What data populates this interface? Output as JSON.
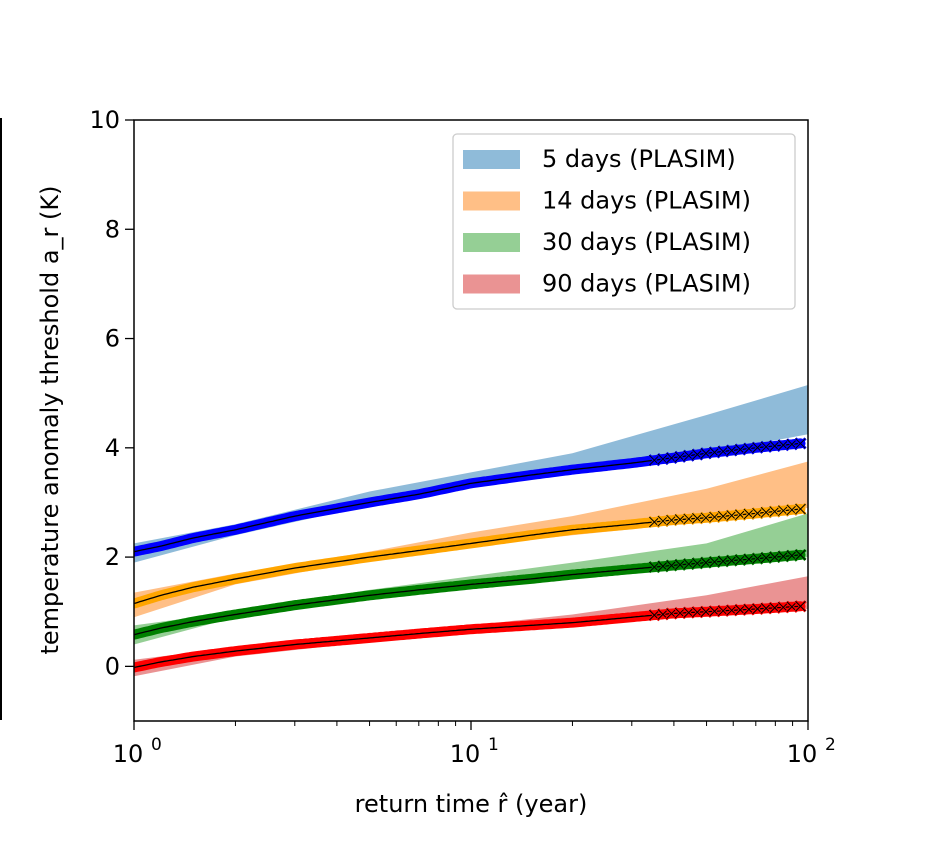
{
  "chart_data": {
    "type": "line",
    "title": "",
    "xlabel": "return time r̂ (year)",
    "ylabel": "temperature anomaly threshold a_r (K)",
    "xscale": "log",
    "xlim": [
      1,
      100
    ],
    "ylim": [
      -1,
      10
    ],
    "x_ticks": [
      {
        "value": 1,
        "base": "10",
        "exp": "0"
      },
      {
        "value": 10,
        "base": "10",
        "exp": "1"
      },
      {
        "value": 100,
        "base": "10",
        "exp": "2"
      }
    ],
    "y_ticks": [
      "0",
      "2",
      "4",
      "6",
      "8",
      "10"
    ],
    "grid": false,
    "legend_position": "top-right",
    "series": [
      {
        "name": "5 days (PLASIM)",
        "color": "#0000ff",
        "band_color": "#1f77b4",
        "x": [
          1,
          1.2,
          1.5,
          2,
          3,
          5,
          7,
          10,
          15,
          20,
          30,
          40,
          50,
          70,
          95
        ],
        "values": [
          2.1,
          2.2,
          2.35,
          2.5,
          2.75,
          3.0,
          3.15,
          3.35,
          3.5,
          3.6,
          3.72,
          3.82,
          3.9,
          4.0,
          4.08
        ],
        "band_x": [
          1,
          2,
          5,
          10,
          20,
          50,
          100
        ],
        "band_lower": [
          1.9,
          2.4,
          2.95,
          3.3,
          3.55,
          3.9,
          4.25
        ],
        "band_upper": [
          2.25,
          2.6,
          3.2,
          3.55,
          3.9,
          4.6,
          5.15
        ]
      },
      {
        "name": "14 days (PLASIM)",
        "color": "#ffa500",
        "band_color": "#ff7f0e",
        "x": [
          1,
          1.2,
          1.5,
          2,
          3,
          5,
          7,
          10,
          15,
          20,
          30,
          40,
          50,
          70,
          95
        ],
        "values": [
          1.15,
          1.3,
          1.45,
          1.6,
          1.8,
          2.0,
          2.12,
          2.25,
          2.4,
          2.5,
          2.6,
          2.68,
          2.72,
          2.8,
          2.88
        ],
        "band_x": [
          1,
          2,
          5,
          10,
          20,
          50,
          100
        ],
        "band_lower": [
          0.9,
          1.5,
          1.95,
          2.2,
          2.4,
          2.65,
          2.9
        ],
        "band_upper": [
          1.35,
          1.7,
          2.1,
          2.45,
          2.75,
          3.25,
          3.75
        ]
      },
      {
        "name": "30 days (PLASIM)",
        "color": "#008000",
        "band_color": "#2ca02c",
        "x": [
          1,
          1.2,
          1.5,
          2,
          3,
          5,
          7,
          10,
          15,
          20,
          30,
          40,
          50,
          70,
          95
        ],
        "values": [
          0.58,
          0.7,
          0.82,
          0.95,
          1.12,
          1.3,
          1.4,
          1.5,
          1.6,
          1.68,
          1.78,
          1.85,
          1.9,
          1.97,
          2.04
        ],
        "band_x": [
          1,
          2,
          5,
          10,
          20,
          50,
          100
        ],
        "band_lower": [
          0.4,
          0.9,
          1.25,
          1.45,
          1.6,
          1.8,
          2.0
        ],
        "band_upper": [
          0.75,
          1.0,
          1.4,
          1.65,
          1.9,
          2.25,
          2.8
        ]
      },
      {
        "name": "90 days (PLASIM)",
        "color": "#ff0000",
        "band_color": "#d62728",
        "x": [
          1,
          1.2,
          1.5,
          2,
          3,
          5,
          7,
          10,
          15,
          20,
          30,
          40,
          50,
          70,
          95
        ],
        "values": [
          -0.02,
          0.08,
          0.18,
          0.28,
          0.4,
          0.52,
          0.6,
          0.68,
          0.75,
          0.8,
          0.9,
          0.97,
          1.0,
          1.05,
          1.1
        ],
        "band_x": [
          1,
          2,
          5,
          10,
          20,
          50,
          100
        ],
        "band_lower": [
          -0.18,
          0.18,
          0.45,
          0.62,
          0.78,
          0.95,
          1.05
        ],
        "band_upper": [
          0.12,
          0.35,
          0.58,
          0.75,
          0.95,
          1.3,
          1.65
        ]
      }
    ]
  }
}
